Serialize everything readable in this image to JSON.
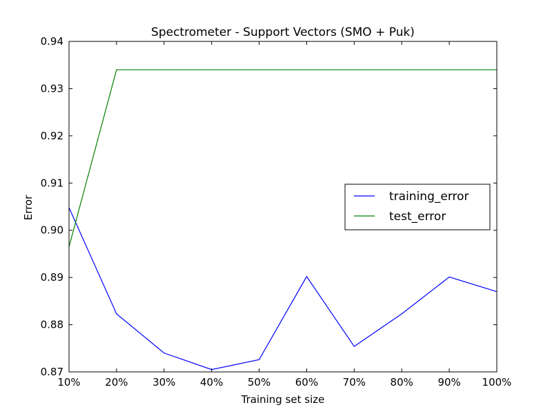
{
  "chart_data": {
    "type": "line",
    "title": "Spectrometer - Support Vectors (SMO + Puk)",
    "xlabel": "Training set size",
    "ylabel": "Error",
    "x": [
      10,
      20,
      30,
      40,
      50,
      60,
      70,
      80,
      90,
      100
    ],
    "x_tick_labels": [
      "10%",
      "20%",
      "30%",
      "40%",
      "50%",
      "60%",
      "70%",
      "80%",
      "90%",
      "100%"
    ],
    "xlim": [
      10,
      100
    ],
    "ylim": [
      0.87,
      0.94
    ],
    "y_ticks": [
      0.87,
      0.88,
      0.89,
      0.9,
      0.91,
      0.92,
      0.93,
      0.94
    ],
    "y_tick_labels": [
      "0.87",
      "0.88",
      "0.89",
      "0.90",
      "0.91",
      "0.92",
      "0.93",
      "0.94"
    ],
    "grid": false,
    "legend_position": "center-right",
    "series": [
      {
        "name": "training_error",
        "color": "#0000ff",
        "values": [
          0.9048,
          0.8823,
          0.874,
          0.8705,
          0.8726,
          0.8902,
          0.8754,
          0.8823,
          0.8901,
          0.887
        ]
      },
      {
        "name": "test_error",
        "color": "#008000",
        "values": [
          0.8965,
          0.934,
          0.934,
          0.934,
          0.934,
          0.934,
          0.934,
          0.934,
          0.934,
          0.934
        ]
      }
    ]
  }
}
